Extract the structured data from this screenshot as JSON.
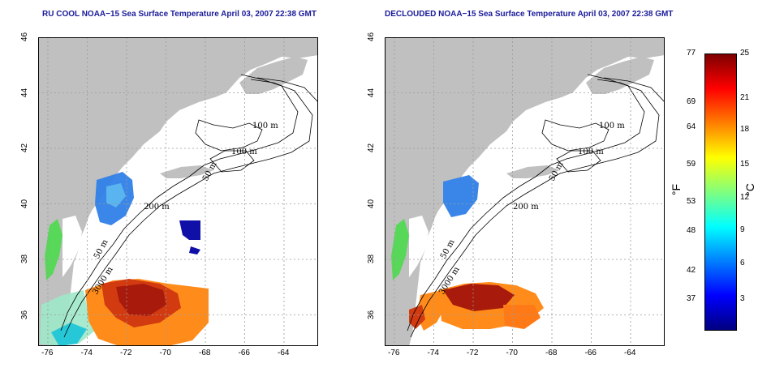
{
  "titles": {
    "left": "RU COOL NOAA−15 Sea Surface Temperature April 03, 2007 22:38 GMT",
    "right": "DECLOUDED NOAA−15 Sea Surface Temperature April 03, 2007 22:38 GMT"
  },
  "axes": {
    "lat_ticks": [
      "46",
      "44",
      "42",
      "40",
      "38",
      "36"
    ],
    "lon_ticks": [
      "-76",
      "-74",
      "-72",
      "-70",
      "-68",
      "-66",
      "-64"
    ]
  },
  "contour_labels": [
    "100 m",
    "100 m",
    "50 m",
    "200 m",
    "50 m",
    "3000 m"
  ],
  "colorbar": {
    "fahrenheit_ticks": [
      "77",
      "69",
      "64",
      "59",
      "53",
      "48",
      "42",
      "37"
    ],
    "celsius_ticks": [
      "25",
      "21",
      "18",
      "15",
      "12",
      "9",
      "6",
      "3"
    ],
    "fahrenheit_unit": "°F",
    "celsius_unit": "°C",
    "colors": [
      "#00007f",
      "#0000ff",
      "#007fff",
      "#00ffff",
      "#7fff7f",
      "#ffff00",
      "#ff7f00",
      "#ff0000",
      "#7f0000"
    ]
  },
  "colors": {
    "land": "#c0c0c0",
    "ocean": "#ffffff",
    "title": "#1a1a9a"
  }
}
